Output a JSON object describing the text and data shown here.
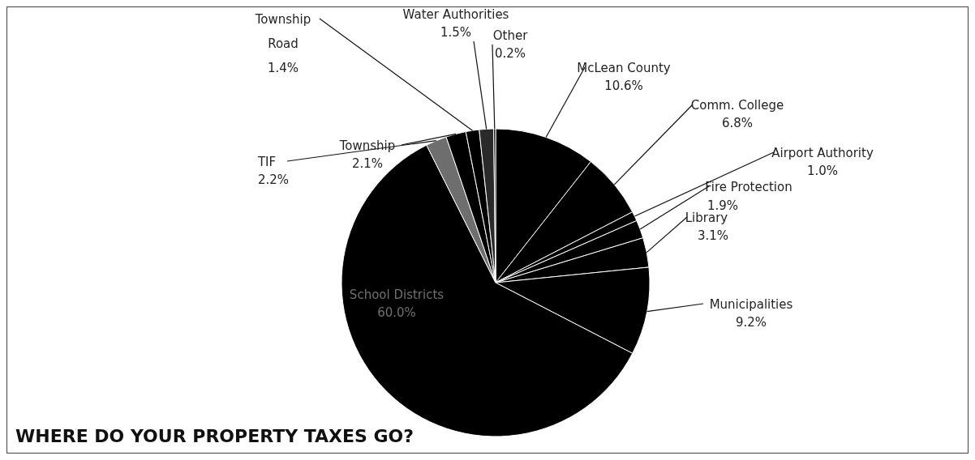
{
  "chart_data": {
    "type": "pie",
    "title": "WHERE DO YOUR PROPERTY TAXES GO?",
    "categories": [
      "McLean County",
      "Comm. College",
      "Airport Authority",
      "Fire Protection",
      "Library",
      "Municipalities",
      "School Districts",
      "TIF",
      "Township",
      "Township Road",
      "Water Authorities",
      "Other"
    ],
    "values": [
      10.6,
      6.8,
      1.0,
      1.9,
      3.1,
      9.2,
      60.0,
      2.2,
      2.1,
      1.4,
      1.5,
      0.2
    ],
    "value_labels": [
      "10.6%",
      "6.8%",
      "1.0%",
      "1.9%",
      "3.1%",
      "9.2%",
      "60.0%",
      "2.2%",
      "2.1%",
      "1.4%",
      "1.5%",
      "0.2%"
    ],
    "colors": [
      "#000000",
      "#000000",
      "#000000",
      "#000000",
      "#000000",
      "#000000",
      "#000000",
      "#6e6e6e",
      "#000000",
      "#000000",
      "#2a2a2a",
      "#000000"
    ]
  }
}
